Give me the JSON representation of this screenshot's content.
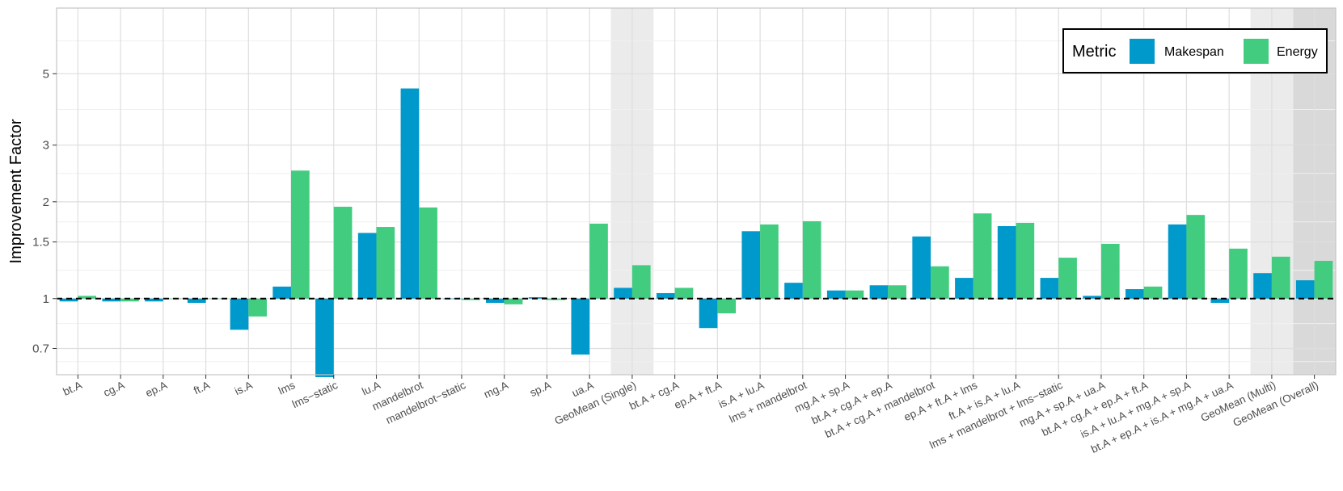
{
  "chart_data": {
    "type": "bar",
    "ylabel": "Improvement Factor",
    "xlabel": "",
    "y_scale": "log",
    "ylim": [
      0.58,
      8.0
    ],
    "y_ticks": [
      0.7,
      1,
      1.5,
      2,
      3,
      5
    ],
    "y_tick_labels": [
      "0.7",
      "1",
      "1.5",
      "2",
      "3",
      "5"
    ],
    "baseline": 1,
    "grid": true,
    "legend": {
      "title": "Metric",
      "position": "top-right"
    },
    "categories": [
      "bt.A",
      "cg.A",
      "ep.A",
      "ft.A",
      "is.A",
      "lms",
      "lms−static",
      "lu.A",
      "mandelbrot",
      "mandelbrot−static",
      "mg.A",
      "sp.A",
      "ua.A",
      "GeoMean (Single)",
      "bt.A + cg.A",
      "ep.A + ft.A",
      "is.A + lu.A",
      "lms + mandelbrot",
      "mg.A + sp.A",
      "bt.A + cg.A + ep.A",
      "bt.A + cg.A + mandelbrot",
      "ep.A + ft.A + lms",
      "ft.A + is.A + lu.A",
      "lms + mandelbrot + lms−static",
      "mg.A + sp.A + ua.A",
      "bt.A + cg.A + ep.A + ft.A",
      "is.A + lu.A + mg.A + sp.A",
      "bt.A + ep.A + is.A + mg.A + ua.A",
      "GeoMean (Multi)",
      "GeoMean (Overall)"
    ],
    "highlighted_categories": [
      {
        "name": "GeoMean (Single)",
        "color": "#ebebeb"
      },
      {
        "name": "GeoMean (Multi)",
        "color": "#ebebeb"
      },
      {
        "name": "GeoMean (Overall)",
        "color": "#d9d9d9"
      }
    ],
    "series": [
      {
        "name": "Makespan",
        "color": "#0099cc",
        "values": [
          0.98,
          0.98,
          0.98,
          0.97,
          0.8,
          1.09,
          0.57,
          1.6,
          4.5,
          1.0,
          0.97,
          1.01,
          0.67,
          1.08,
          1.04,
          0.81,
          1.62,
          1.12,
          1.06,
          1.1,
          1.56,
          1.16,
          1.68,
          1.16,
          1.02,
          1.07,
          1.7,
          0.97,
          1.2,
          1.14
        ]
      },
      {
        "name": "Energy",
        "color": "#42cc7f",
        "values": [
          1.02,
          0.98,
          1.0,
          1.0,
          0.88,
          2.5,
          1.93,
          1.67,
          1.92,
          0.99,
          0.96,
          0.99,
          1.71,
          1.27,
          1.08,
          0.9,
          1.7,
          1.74,
          1.06,
          1.1,
          1.26,
          1.84,
          1.72,
          1.34,
          1.48,
          1.09,
          1.82,
          1.43,
          1.35,
          1.31
        ]
      }
    ]
  }
}
